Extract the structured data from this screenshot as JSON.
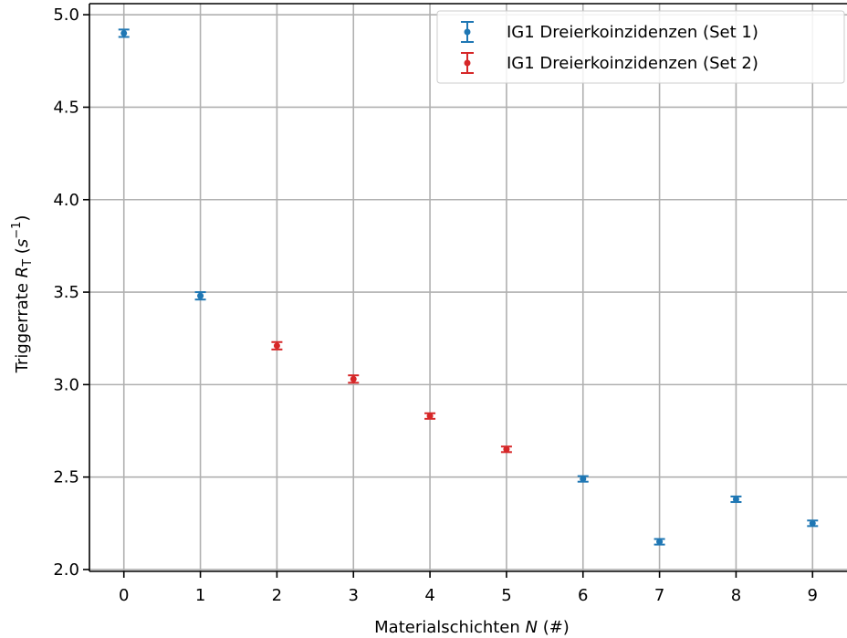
{
  "chart_data": {
    "type": "scatter",
    "title": "",
    "xlabel_parts": {
      "prefix": "Materialschichten ",
      "var": "N",
      "suffix": " (#)"
    },
    "ylabel_parts": {
      "prefix": "Triggerrate ",
      "var": "R",
      "sub": "T",
      "open": " (",
      "unit": "s",
      "exp": "−1",
      "close": ")"
    },
    "xlim": [
      -0.45,
      9.45
    ],
    "ylim": [
      1.99,
      5.06
    ],
    "xticks": [
      0,
      1,
      2,
      3,
      4,
      5,
      6,
      7,
      8,
      9
    ],
    "xtick_labels": [
      "0",
      "1",
      "2",
      "3",
      "4",
      "5",
      "6",
      "7",
      "8",
      "9"
    ],
    "yticks": [
      2.0,
      2.5,
      3.0,
      3.5,
      4.0,
      4.5,
      5.0
    ],
    "ytick_labels": [
      "2.0",
      "2.5",
      "3.0",
      "3.5",
      "4.0",
      "4.5",
      "5.0"
    ],
    "grid": true,
    "legend_position": "top-right",
    "series": [
      {
        "name": "IG1 Dreierkoinzidenzen (Set 1)",
        "color": "#1f77b4",
        "x": [
          0,
          1,
          6,
          7,
          8,
          9
        ],
        "y": [
          4.9,
          3.48,
          2.49,
          2.15,
          2.38,
          2.25
        ],
        "yerr": [
          0.02,
          0.02,
          0.015,
          0.015,
          0.015,
          0.015
        ]
      },
      {
        "name": "IG1 Dreierkoinzidenzen (Set 2)",
        "color": "#d62728",
        "x": [
          2,
          3,
          4,
          5
        ],
        "y": [
          3.21,
          3.03,
          2.83,
          2.65
        ],
        "yerr": [
          0.02,
          0.02,
          0.015,
          0.015
        ]
      }
    ]
  }
}
